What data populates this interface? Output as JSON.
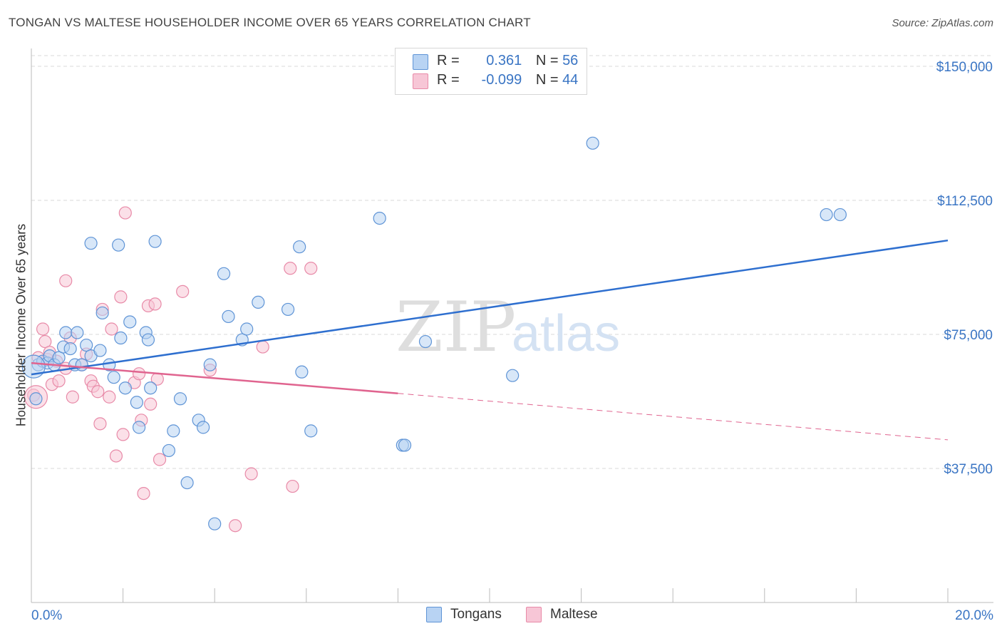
{
  "header": {
    "title": "TONGAN VS MALTESE HOUSEHOLDER INCOME OVER 65 YEARS CORRELATION CHART",
    "source": "Source: ZipAtlas.com"
  },
  "watermark": {
    "zip": "ZIP",
    "atlas": "atlas"
  },
  "legend": {
    "rows": [
      {
        "r_label": "R =",
        "r_value": "0.361",
        "n_label": "N =",
        "n_value": "56"
      },
      {
        "r_label": "R =",
        "r_value": "-0.099",
        "n_label": "N =",
        "n_value": "44"
      }
    ]
  },
  "bottom_legend": {
    "tongans": "Tongans",
    "maltese": "Maltese"
  },
  "colors": {
    "tongans_fill": "#b8d3f3",
    "tongans_stroke": "#5f94d6",
    "tongans_line": "#2e6fcf",
    "maltese_fill": "#f7c6d6",
    "maltese_stroke": "#e88aa8",
    "maltese_line": "#e0648f",
    "axis_text": "#3a75c4",
    "grid": "#d9d9d9"
  },
  "chart_data": {
    "type": "scatter",
    "title": "TONGAN VS MALTESE HOUSEHOLDER INCOME OVER 65 YEARS CORRELATION CHART",
    "xlabel": "",
    "ylabel": "Householder Income Over 65 years",
    "xlim": [
      0,
      20
    ],
    "ylim": [
      0,
      153000
    ],
    "x_tick_labels": [
      "0.0%",
      "20.0%"
    ],
    "y_ticks": [
      37500,
      75000,
      112500,
      150000
    ],
    "y_tick_labels": [
      "$37,500",
      "$75,000",
      "$112,500",
      "$150,000"
    ],
    "grid": true,
    "series": [
      {
        "name": "Tongans",
        "points": [
          [
            0.1,
            57000
          ],
          [
            0.15,
            66500
          ],
          [
            0.25,
            67500
          ],
          [
            0.35,
            67000
          ],
          [
            0.4,
            69000
          ],
          [
            0.5,
            66500
          ],
          [
            0.6,
            68500
          ],
          [
            0.7,
            71500
          ],
          [
            0.75,
            75500
          ],
          [
            0.85,
            71000
          ],
          [
            0.95,
            66500
          ],
          [
            1.0,
            75500
          ],
          [
            1.1,
            66500
          ],
          [
            1.2,
            72000
          ],
          [
            1.3,
            69000
          ],
          [
            1.3,
            100500
          ],
          [
            1.5,
            70500
          ],
          [
            1.55,
            81000
          ],
          [
            1.7,
            66500
          ],
          [
            1.8,
            63000
          ],
          [
            1.9,
            100000
          ],
          [
            1.95,
            74000
          ],
          [
            2.05,
            60000
          ],
          [
            2.15,
            78500
          ],
          [
            2.3,
            56000
          ],
          [
            2.35,
            49000
          ],
          [
            2.5,
            75500
          ],
          [
            2.55,
            73500
          ],
          [
            2.6,
            60000
          ],
          [
            2.7,
            101000
          ],
          [
            3.0,
            42500
          ],
          [
            3.1,
            48000
          ],
          [
            3.25,
            57000
          ],
          [
            3.4,
            33500
          ],
          [
            3.65,
            51000
          ],
          [
            3.75,
            49000
          ],
          [
            3.9,
            66500
          ],
          [
            4.0,
            22000
          ],
          [
            4.2,
            92000
          ],
          [
            4.3,
            80000
          ],
          [
            4.6,
            73500
          ],
          [
            4.7,
            76500
          ],
          [
            4.95,
            84000
          ],
          [
            5.6,
            82000
          ],
          [
            5.85,
            99500
          ],
          [
            5.9,
            64500
          ],
          [
            6.1,
            48000
          ],
          [
            7.6,
            107500
          ],
          [
            8.1,
            44000
          ],
          [
            8.15,
            44000
          ],
          [
            8.6,
            73000
          ],
          [
            10.5,
            63500
          ],
          [
            12.25,
            128500
          ],
          [
            17.35,
            108500
          ],
          [
            17.65,
            108500
          ],
          [
            0.05,
            66000
          ]
        ]
      },
      {
        "name": "Maltese",
        "points": [
          [
            0.05,
            58000
          ],
          [
            0.15,
            68500
          ],
          [
            0.25,
            76500
          ],
          [
            0.3,
            73000
          ],
          [
            0.35,
            68000
          ],
          [
            0.4,
            70000
          ],
          [
            0.45,
            61000
          ],
          [
            0.55,
            67500
          ],
          [
            0.6,
            62000
          ],
          [
            0.75,
            65500
          ],
          [
            0.75,
            90000
          ],
          [
            0.85,
            74000
          ],
          [
            0.9,
            57500
          ],
          [
            1.1,
            66500
          ],
          [
            1.2,
            69500
          ],
          [
            1.3,
            62000
          ],
          [
            1.35,
            60500
          ],
          [
            1.45,
            59000
          ],
          [
            1.5,
            50000
          ],
          [
            1.55,
            82000
          ],
          [
            1.7,
            57500
          ],
          [
            1.75,
            76500
          ],
          [
            1.85,
            41000
          ],
          [
            1.95,
            85500
          ],
          [
            2.0,
            47000
          ],
          [
            2.05,
            109000
          ],
          [
            2.25,
            61500
          ],
          [
            2.35,
            64000
          ],
          [
            2.4,
            51000
          ],
          [
            2.45,
            30500
          ],
          [
            2.55,
            83000
          ],
          [
            2.6,
            55500
          ],
          [
            2.7,
            83500
          ],
          [
            2.75,
            62500
          ],
          [
            2.8,
            40000
          ],
          [
            3.3,
            87000
          ],
          [
            3.9,
            65000
          ],
          [
            4.45,
            21500
          ],
          [
            4.8,
            36000
          ],
          [
            5.05,
            71500
          ],
          [
            5.65,
            93500
          ],
          [
            5.7,
            32500
          ],
          [
            6.1,
            93500
          ],
          [
            0.1,
            57500
          ]
        ]
      }
    ],
    "trendlines": [
      {
        "series": "Tongans",
        "from": [
          0,
          63800
        ],
        "to": [
          20,
          101300
        ],
        "style": "solid"
      },
      {
        "series": "Maltese",
        "from": [
          0,
          67000
        ],
        "to": [
          8,
          58500
        ],
        "style": "solid"
      },
      {
        "series": "Maltese",
        "from": [
          8,
          58500
        ],
        "to": [
          20,
          45500
        ],
        "style": "dashed"
      }
    ]
  }
}
